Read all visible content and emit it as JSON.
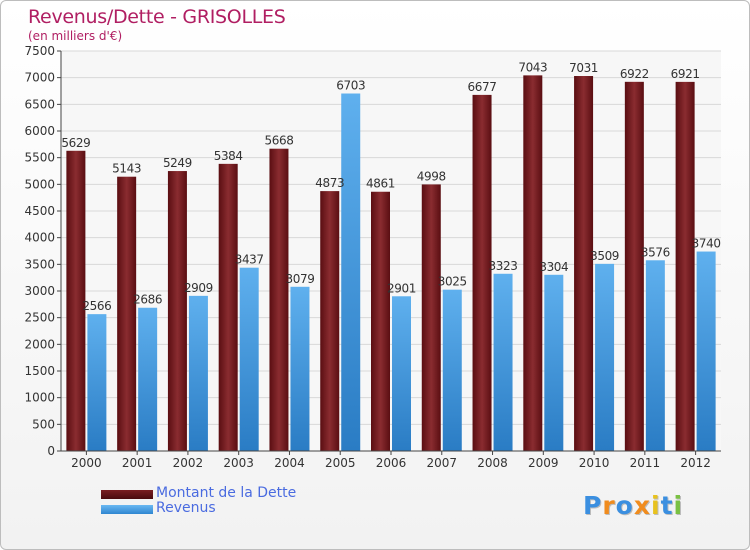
{
  "title": "Revenus/Dette - GRISOLLES",
  "subtitle": "(en milliers d'€)",
  "logo": {
    "text": "Proxiti",
    "letters": [
      {
        "ch": "P",
        "color": "#3b8fe0"
      },
      {
        "ch": "r",
        "color": "#f08c1e"
      },
      {
        "ch": "o",
        "color": "#3b8fe0"
      },
      {
        "ch": "x",
        "color": "#f08c1e"
      },
      {
        "ch": "i",
        "color": "#e8c21e"
      },
      {
        "ch": "t",
        "color": "#3b8fe0"
      },
      {
        "ch": "i",
        "color": "#7ac142"
      }
    ]
  },
  "colors": {
    "dette": "#7a1e22",
    "revenus": "#4ea3e6",
    "label": "#333333",
    "title": "#b01e62"
  },
  "chart_data": {
    "type": "bar",
    "title": "Revenus/Dette - GRISOLLES",
    "subtitle": "(en milliers d'€)",
    "categories": [
      "2000",
      "2001",
      "2002",
      "2003",
      "2004",
      "2005",
      "2006",
      "2007",
      "2008",
      "2009",
      "2010",
      "2011",
      "2012"
    ],
    "series": [
      {
        "name": "Montant de la Dette",
        "color": "#7a1e22",
        "values": [
          5629,
          5143,
          5249,
          5384,
          5668,
          4873,
          4861,
          4998,
          6677,
          7043,
          7031,
          6922,
          6921
        ]
      },
      {
        "name": "Revenus",
        "color": "#4ea3e6",
        "values": [
          2566,
          2686,
          2909,
          3437,
          3079,
          6703,
          2901,
          3025,
          3323,
          3304,
          3509,
          3576,
          3740
        ]
      }
    ],
    "ylim": [
      0,
      7500
    ],
    "yticks": [
      0,
      500,
      1000,
      1500,
      2000,
      2500,
      3000,
      3500,
      4000,
      4500,
      5000,
      5500,
      6000,
      6500,
      7000,
      7500
    ],
    "grid": true,
    "legend": "bottom-left"
  }
}
